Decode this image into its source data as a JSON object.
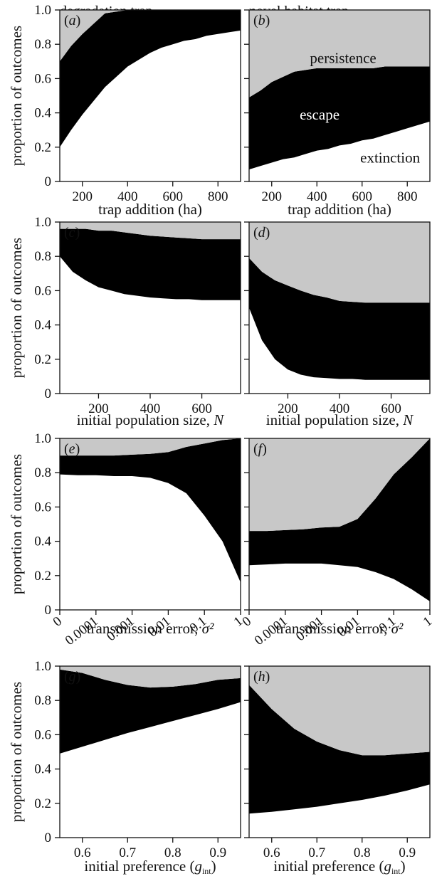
{
  "column_titles": [
    "degradation trap",
    "novel habitat trap"
  ],
  "ylabel": "proportion of outcomes",
  "colors": {
    "extinction": "#ffffff",
    "escape": "#000000",
    "persistence": "#c8c8c8",
    "axis": "#111111"
  },
  "chart_data": [
    {
      "panel": "(a)",
      "type": "area",
      "stacked": true,
      "xlabel": "trap addition (ha)",
      "xlim": [
        100,
        900
      ],
      "ylim": [
        0,
        1
      ],
      "xticks": [
        200,
        400,
        600,
        800
      ],
      "yticks": [
        "0",
        "0.2",
        "0.4",
        "0.6",
        "0.8",
        "1.0"
      ],
      "x": [
        100,
        150,
        200,
        250,
        300,
        350,
        400,
        450,
        500,
        550,
        600,
        650,
        700,
        750,
        800,
        850,
        900
      ],
      "series": [
        {
          "name": "extinction",
          "values": [
            0.2,
            0.3,
            0.39,
            0.47,
            0.55,
            0.61,
            0.67,
            0.71,
            0.75,
            0.78,
            0.8,
            0.82,
            0.83,
            0.85,
            0.86,
            0.87,
            0.88
          ]
        },
        {
          "name": "escape",
          "values": [
            0.5,
            0.49,
            0.47,
            0.45,
            0.43,
            0.38,
            0.33,
            0.29,
            0.25,
            0.22,
            0.2,
            0.18,
            0.17,
            0.15,
            0.14,
            0.13,
            0.12
          ]
        },
        {
          "name": "persistence",
          "values": [
            0.3,
            0.21,
            0.14,
            0.08,
            0.02,
            0.01,
            0.0,
            0.0,
            0.0,
            0.0,
            0.0,
            0.0,
            0.0,
            0.0,
            0.0,
            0.0,
            0.0
          ]
        }
      ]
    },
    {
      "panel": "(b)",
      "type": "area",
      "stacked": true,
      "xlabel": "trap addition (ha)",
      "xlim": [
        100,
        900
      ],
      "ylim": [
        0,
        1
      ],
      "xticks": [
        200,
        400,
        600,
        800
      ],
      "yticks": [],
      "x": [
        100,
        150,
        200,
        250,
        300,
        350,
        400,
        450,
        500,
        550,
        600,
        650,
        700,
        750,
        800,
        850,
        900
      ],
      "series": [
        {
          "name": "extinction",
          "values": [
            0.07,
            0.09,
            0.11,
            0.13,
            0.14,
            0.16,
            0.18,
            0.19,
            0.21,
            0.22,
            0.24,
            0.25,
            0.27,
            0.29,
            0.31,
            0.33,
            0.35
          ]
        },
        {
          "name": "escape",
          "values": [
            0.42,
            0.44,
            0.47,
            0.48,
            0.5,
            0.49,
            0.48,
            0.47,
            0.45,
            0.44,
            0.42,
            0.41,
            0.4,
            0.38,
            0.36,
            0.34,
            0.32
          ]
        },
        {
          "name": "persistence",
          "values": [
            0.51,
            0.47,
            0.42,
            0.39,
            0.36,
            0.35,
            0.34,
            0.34,
            0.34,
            0.34,
            0.34,
            0.34,
            0.33,
            0.33,
            0.33,
            0.33,
            0.33
          ]
        }
      ],
      "annotations": [
        "persistence",
        "escape",
        "extinction"
      ]
    },
    {
      "panel": "(c)",
      "type": "area",
      "stacked": true,
      "xlabel": "initial population size, N",
      "xlim": [
        50,
        750
      ],
      "ylim": [
        0,
        1
      ],
      "xticks": [
        200,
        400,
        600
      ],
      "yticks": [
        "0",
        "0.2",
        "0.4",
        "0.6",
        "0.8",
        "1.0"
      ],
      "x": [
        50,
        100,
        150,
        200,
        250,
        300,
        350,
        400,
        450,
        500,
        550,
        600,
        650,
        700,
        750
      ],
      "series": [
        {
          "name": "extinction",
          "values": [
            0.8,
            0.71,
            0.66,
            0.62,
            0.6,
            0.58,
            0.57,
            0.56,
            0.555,
            0.55,
            0.55,
            0.545,
            0.545,
            0.545,
            0.545
          ]
        },
        {
          "name": "escape",
          "values": [
            0.16,
            0.25,
            0.3,
            0.33,
            0.35,
            0.36,
            0.36,
            0.36,
            0.36,
            0.36,
            0.355,
            0.355,
            0.355,
            0.355,
            0.355
          ]
        },
        {
          "name": "persistence",
          "values": [
            0.04,
            0.04,
            0.04,
            0.05,
            0.05,
            0.06,
            0.07,
            0.08,
            0.085,
            0.09,
            0.095,
            0.1,
            0.1,
            0.1,
            0.1
          ]
        }
      ]
    },
    {
      "panel": "(d)",
      "type": "area",
      "stacked": true,
      "xlabel": "initial population size, N",
      "xlim": [
        50,
        750
      ],
      "ylim": [
        0,
        1
      ],
      "xticks": [
        200,
        400,
        600
      ],
      "yticks": [],
      "x": [
        50,
        100,
        150,
        200,
        250,
        300,
        350,
        400,
        450,
        500,
        550,
        600,
        650,
        700,
        750
      ],
      "series": [
        {
          "name": "extinction",
          "values": [
            0.5,
            0.31,
            0.2,
            0.14,
            0.11,
            0.095,
            0.09,
            0.085,
            0.085,
            0.08,
            0.08,
            0.08,
            0.08,
            0.08,
            0.08
          ]
        },
        {
          "name": "escape",
          "values": [
            0.29,
            0.4,
            0.46,
            0.49,
            0.49,
            0.48,
            0.47,
            0.455,
            0.45,
            0.45,
            0.45,
            0.45,
            0.45,
            0.45,
            0.45
          ]
        },
        {
          "name": "persistence",
          "values": [
            0.21,
            0.29,
            0.34,
            0.37,
            0.4,
            0.425,
            0.44,
            0.46,
            0.465,
            0.47,
            0.47,
            0.47,
            0.47,
            0.47,
            0.47
          ]
        }
      ]
    },
    {
      "panel": "(e)",
      "type": "area",
      "stacked": true,
      "xlabel": "transmission error, σ²",
      "x_scale": "categorical-log",
      "ylim": [
        0,
        1
      ],
      "xticks": [
        "0",
        "0.0001",
        "0.001",
        "0.01",
        "0.1",
        "1"
      ],
      "yticks": [
        "0",
        "0.2",
        "0.4",
        "0.6",
        "0.8",
        "1.0"
      ],
      "x": [
        "0",
        "",
        "0.0001",
        "",
        "0.001",
        "",
        "0.01",
        "",
        "0.1",
        "",
        "1"
      ],
      "series": [
        {
          "name": "extinction",
          "values": [
            0.79,
            0.785,
            0.785,
            0.78,
            0.78,
            0.77,
            0.74,
            0.68,
            0.55,
            0.4,
            0.16
          ]
        },
        {
          "name": "escape",
          "values": [
            0.11,
            0.115,
            0.115,
            0.12,
            0.125,
            0.14,
            0.18,
            0.27,
            0.42,
            0.59,
            0.84
          ]
        },
        {
          "name": "persistence",
          "values": [
            0.1,
            0.1,
            0.1,
            0.1,
            0.095,
            0.09,
            0.08,
            0.05,
            0.03,
            0.01,
            0.0
          ]
        }
      ]
    },
    {
      "panel": "(f)",
      "type": "area",
      "stacked": true,
      "xlabel": "transmission error, σ²",
      "x_scale": "categorical-log",
      "ylim": [
        0,
        1
      ],
      "xticks": [
        "0",
        "0.0001",
        "0.001",
        "0.01",
        "0.1",
        "1"
      ],
      "yticks": [],
      "x": [
        "0",
        "",
        "0.0001",
        "",
        "0.001",
        "",
        "0.01",
        "",
        "0.1",
        "",
        "1"
      ],
      "series": [
        {
          "name": "extinction",
          "values": [
            0.26,
            0.265,
            0.27,
            0.27,
            0.27,
            0.26,
            0.25,
            0.22,
            0.18,
            0.12,
            0.05
          ]
        },
        {
          "name": "escape",
          "values": [
            0.2,
            0.195,
            0.195,
            0.2,
            0.21,
            0.225,
            0.28,
            0.43,
            0.61,
            0.77,
            0.95
          ]
        },
        {
          "name": "persistence",
          "values": [
            0.54,
            0.54,
            0.535,
            0.53,
            0.52,
            0.515,
            0.47,
            0.35,
            0.21,
            0.11,
            0.0
          ]
        }
      ]
    },
    {
      "panel": "(g)",
      "type": "area",
      "stacked": true,
      "xlabel": "initial preference (g_int)",
      "xlim": [
        0.55,
        0.95
      ],
      "ylim": [
        0,
        1
      ],
      "xticks": [
        "0.6",
        "0.7",
        "0.8",
        "0.9"
      ],
      "yticks": [
        "0",
        "0.2",
        "0.4",
        "0.6",
        "0.8",
        "1.0"
      ],
      "x": [
        0.55,
        0.6,
        0.65,
        0.7,
        0.75,
        0.8,
        0.85,
        0.9,
        0.95
      ],
      "series": [
        {
          "name": "extinction",
          "values": [
            0.49,
            0.53,
            0.57,
            0.61,
            0.645,
            0.68,
            0.715,
            0.75,
            0.79
          ]
        },
        {
          "name": "escape",
          "values": [
            0.49,
            0.43,
            0.35,
            0.28,
            0.23,
            0.2,
            0.18,
            0.17,
            0.14
          ]
        },
        {
          "name": "persistence",
          "values": [
            0.02,
            0.04,
            0.08,
            0.11,
            0.125,
            0.12,
            0.105,
            0.08,
            0.07
          ]
        }
      ]
    },
    {
      "panel": "(h)",
      "type": "area",
      "stacked": true,
      "xlabel": "initial preference (g_int)",
      "xlim": [
        0.55,
        0.95
      ],
      "ylim": [
        0,
        1
      ],
      "xticks": [
        "0.6",
        "0.7",
        "0.8",
        "0.9"
      ],
      "yticks": [],
      "x": [
        0.55,
        0.6,
        0.65,
        0.7,
        0.75,
        0.8,
        0.85,
        0.9,
        0.95
      ],
      "series": [
        {
          "name": "extinction",
          "values": [
            0.14,
            0.15,
            0.165,
            0.18,
            0.2,
            0.22,
            0.245,
            0.275,
            0.31
          ]
        },
        {
          "name": "escape",
          "values": [
            0.75,
            0.6,
            0.47,
            0.38,
            0.31,
            0.26,
            0.235,
            0.215,
            0.19
          ]
        },
        {
          "name": "persistence",
          "values": [
            0.11,
            0.25,
            0.365,
            0.44,
            0.49,
            0.52,
            0.52,
            0.51,
            0.5
          ]
        }
      ]
    }
  ]
}
